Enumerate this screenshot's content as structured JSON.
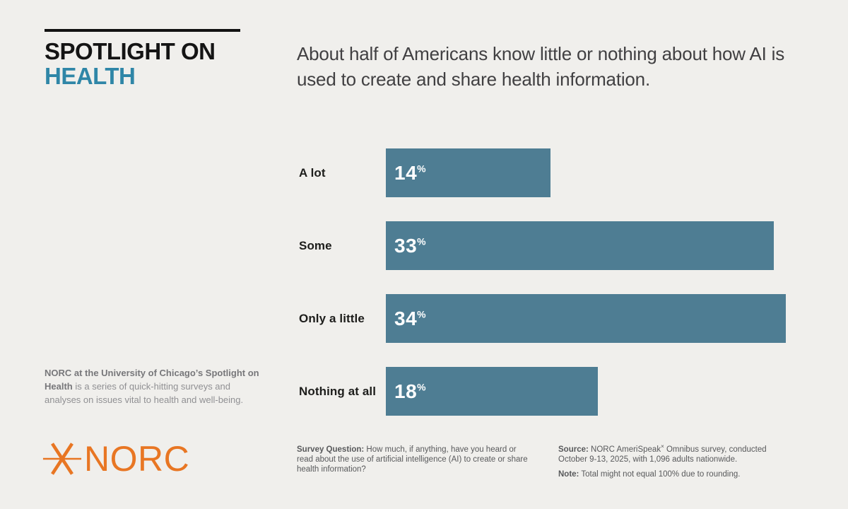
{
  "brand": {
    "kicker_line1": "SPOTLIGHT ON",
    "kicker_line2": "HEALTH",
    "logo_text": "NORC"
  },
  "chart_data": {
    "type": "bar",
    "orientation": "horizontal",
    "title": "About half of Americans know little or nothing about how AI is used to create and share health information.",
    "categories": [
      "A lot",
      "Some",
      "Only a little",
      "Nothing at all"
    ],
    "values": [
      14,
      33,
      34,
      18
    ],
    "unit": "%",
    "xlim": [
      0,
      100
    ],
    "grid": false,
    "legend": "none",
    "bar_color": "#4e7d93",
    "value_label_color": "#ffffff"
  },
  "about": {
    "bold": "NORC at the University of Chicago’s Spotlight on Health",
    "rest": " is a series of quick-hitting surveys and analyses on issues vital to health and well-being."
  },
  "footnotes": {
    "survey_question_label": "Survey Question:",
    "survey_question_text": " How much, if anything, have you heard or read about the use of artificial intelligence (AI) to create or share health information?",
    "source_label": "Source:",
    "source_pre": " NORC AmeriSpeak",
    "source_mark": "×",
    "source_post": " Omnibus survey, conducted October 9-13, 2025, with 1,096 adults nationwide.",
    "note_label": "Note:",
    "note_text": " Total might not equal 100% due to rounding."
  },
  "colors": {
    "background": "#f0efec",
    "bar": "#4e7d93",
    "teal": "#2f86a7",
    "orange": "#e87623",
    "rule_black": "#121212"
  }
}
